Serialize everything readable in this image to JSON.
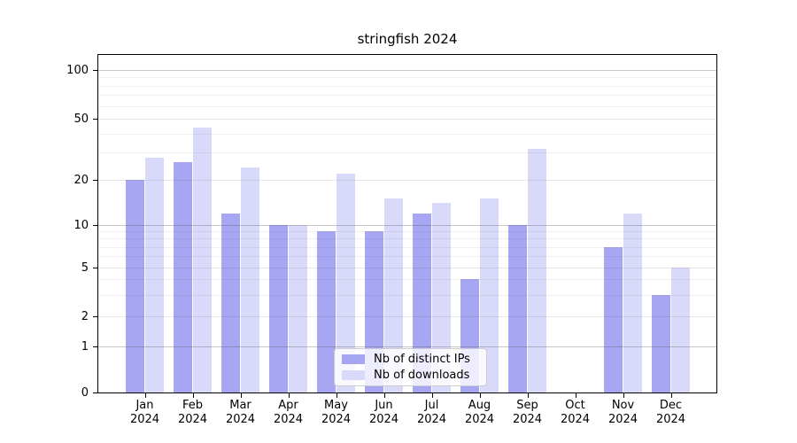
{
  "title": "stringfish 2024",
  "chart_data": {
    "type": "bar",
    "title": "stringfish 2024",
    "categories": [
      "Jan 2024",
      "Feb 2024",
      "Mar 2024",
      "Apr 2024",
      "May 2024",
      "Jun 2024",
      "Jul 2024",
      "Aug 2024",
      "Sep 2024",
      "Oct 2024",
      "Nov 2024",
      "Dec 2024"
    ],
    "series": [
      {
        "name": "Nb of distinct IPs",
        "slug": "distinct-ips",
        "color": "#a6a6f2",
        "values": [
          20,
          26,
          12,
          10,
          9,
          9,
          12,
          4,
          10,
          0,
          7,
          3
        ]
      },
      {
        "name": "Nb of downloads",
        "slug": "downloads",
        "color": "#d9d9f9",
        "values": [
          28,
          44,
          24,
          10,
          22,
          15,
          14,
          15,
          32,
          0,
          12,
          5
        ]
      }
    ],
    "xlabel": "",
    "ylabel": "",
    "y_axis": {
      "scale": "log-like (0, then logarithmic above 1)",
      "ticks": [
        0,
        1,
        2,
        5,
        10,
        20,
        50,
        100
      ],
      "major_gridlines": [
        1,
        10,
        100
      ],
      "mid_gridlines": [
        2,
        5,
        20,
        50
      ],
      "minor_gridlines": [
        3,
        4,
        6,
        7,
        8,
        9,
        30,
        40,
        60,
        70,
        80,
        90
      ],
      "ylim": [
        0,
        120
      ]
    },
    "grid": true,
    "legend": {
      "position": "lower center inside plot",
      "items": [
        "Nb of distinct IPs",
        "Nb of downloads"
      ]
    }
  }
}
